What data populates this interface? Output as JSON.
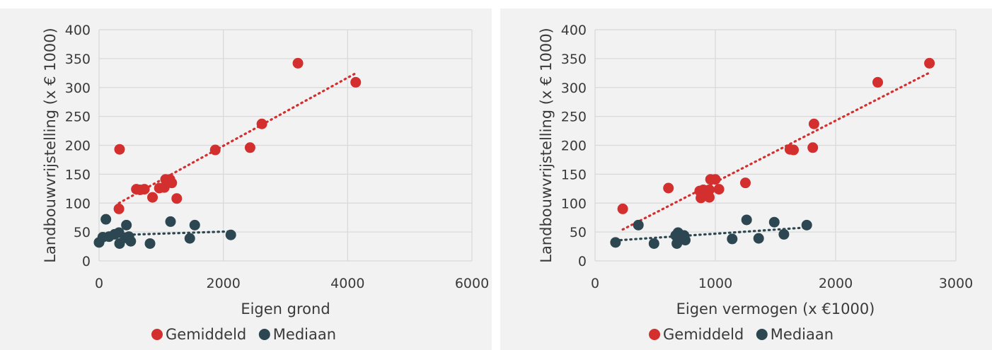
{
  "chart_data": [
    {
      "type": "scatter",
      "title": "",
      "xlabel": "Eigen grond",
      "ylabel": "Landbouwvrijstelling (x € 1000)",
      "xlim": [
        0,
        6000
      ],
      "ylim": [
        0,
        400
      ],
      "xticks": [
        "0",
        "2000",
        "4000",
        "6000"
      ],
      "yticks": [
        "0",
        "50",
        "100",
        "150",
        "200",
        "250",
        "300",
        "350",
        "400"
      ],
      "grid": true,
      "legend_position": "bottom",
      "series": [
        {
          "name": "Gemiddeld",
          "color": "#d32f2f",
          "trendline": "linear-dotted",
          "points": [
            [
              3200,
              342
            ],
            [
              4130,
              309
            ],
            [
              2620,
              237
            ],
            [
              2430,
              196
            ],
            [
              1870,
              192
            ],
            [
              330,
              193
            ],
            [
              1070,
              141
            ],
            [
              1140,
              141
            ],
            [
              1170,
              135
            ],
            [
              1050,
              127
            ],
            [
              970,
              126
            ],
            [
              600,
              124
            ],
            [
              660,
              123
            ],
            [
              730,
              124
            ],
            [
              860,
              110
            ],
            [
              1250,
              108
            ],
            [
              320,
              90
            ]
          ]
        },
        {
          "name": "Mediaan",
          "color": "#2c4751",
          "trendline": "linear-dotted",
          "points": [
            [
              0,
              32
            ],
            [
              60,
              41
            ],
            [
              110,
              72
            ],
            [
              160,
              42
            ],
            [
              250,
              46
            ],
            [
              320,
              49
            ],
            [
              330,
              30
            ],
            [
              420,
              40
            ],
            [
              440,
              62
            ],
            [
              480,
              42
            ],
            [
              510,
              34
            ],
            [
              820,
              30
            ],
            [
              1150,
              68
            ],
            [
              1460,
              39
            ],
            [
              1540,
              62
            ],
            [
              2120,
              45
            ]
          ]
        }
      ]
    },
    {
      "type": "scatter",
      "title": "",
      "xlabel": "Eigen vermogen (x €1000)",
      "ylabel": "Landbouwvrijstelling (x € 1000)",
      "xlim": [
        0,
        3000
      ],
      "ylim": [
        0,
        400
      ],
      "xticks": [
        "0",
        "1000",
        "2000",
        "3000"
      ],
      "yticks": [
        "0",
        "50",
        "100",
        "150",
        "200",
        "250",
        "300",
        "350",
        "400"
      ],
      "grid": true,
      "legend_position": "bottom",
      "series": [
        {
          "name": "Gemiddeld",
          "color": "#d32f2f",
          "trendline": "linear-dotted",
          "points": [
            [
              2780,
              342
            ],
            [
              2350,
              309
            ],
            [
              1820,
              237
            ],
            [
              1810,
              196
            ],
            [
              1650,
              192
            ],
            [
              1620,
              193
            ],
            [
              960,
              141
            ],
            [
              1000,
              141
            ],
            [
              1250,
              135
            ],
            [
              610,
              126
            ],
            [
              1030,
              124
            ],
            [
              870,
              121
            ],
            [
              900,
              123
            ],
            [
              950,
              123
            ],
            [
              880,
              109
            ],
            [
              950,
              110
            ],
            [
              230,
              90
            ]
          ]
        },
        {
          "name": "Mediaan",
          "color": "#2c4751",
          "trendline": "linear-dotted",
          "points": [
            [
              170,
              32
            ],
            [
              360,
              62
            ],
            [
              490,
              30
            ],
            [
              670,
              44
            ],
            [
              680,
              30
            ],
            [
              690,
              49
            ],
            [
              720,
              40
            ],
            [
              740,
              44
            ],
            [
              750,
              36
            ],
            [
              1140,
              38
            ],
            [
              1260,
              71
            ],
            [
              1360,
              39
            ],
            [
              1490,
              67
            ],
            [
              1570,
              46
            ],
            [
              1760,
              62
            ]
          ]
        }
      ]
    }
  ]
}
